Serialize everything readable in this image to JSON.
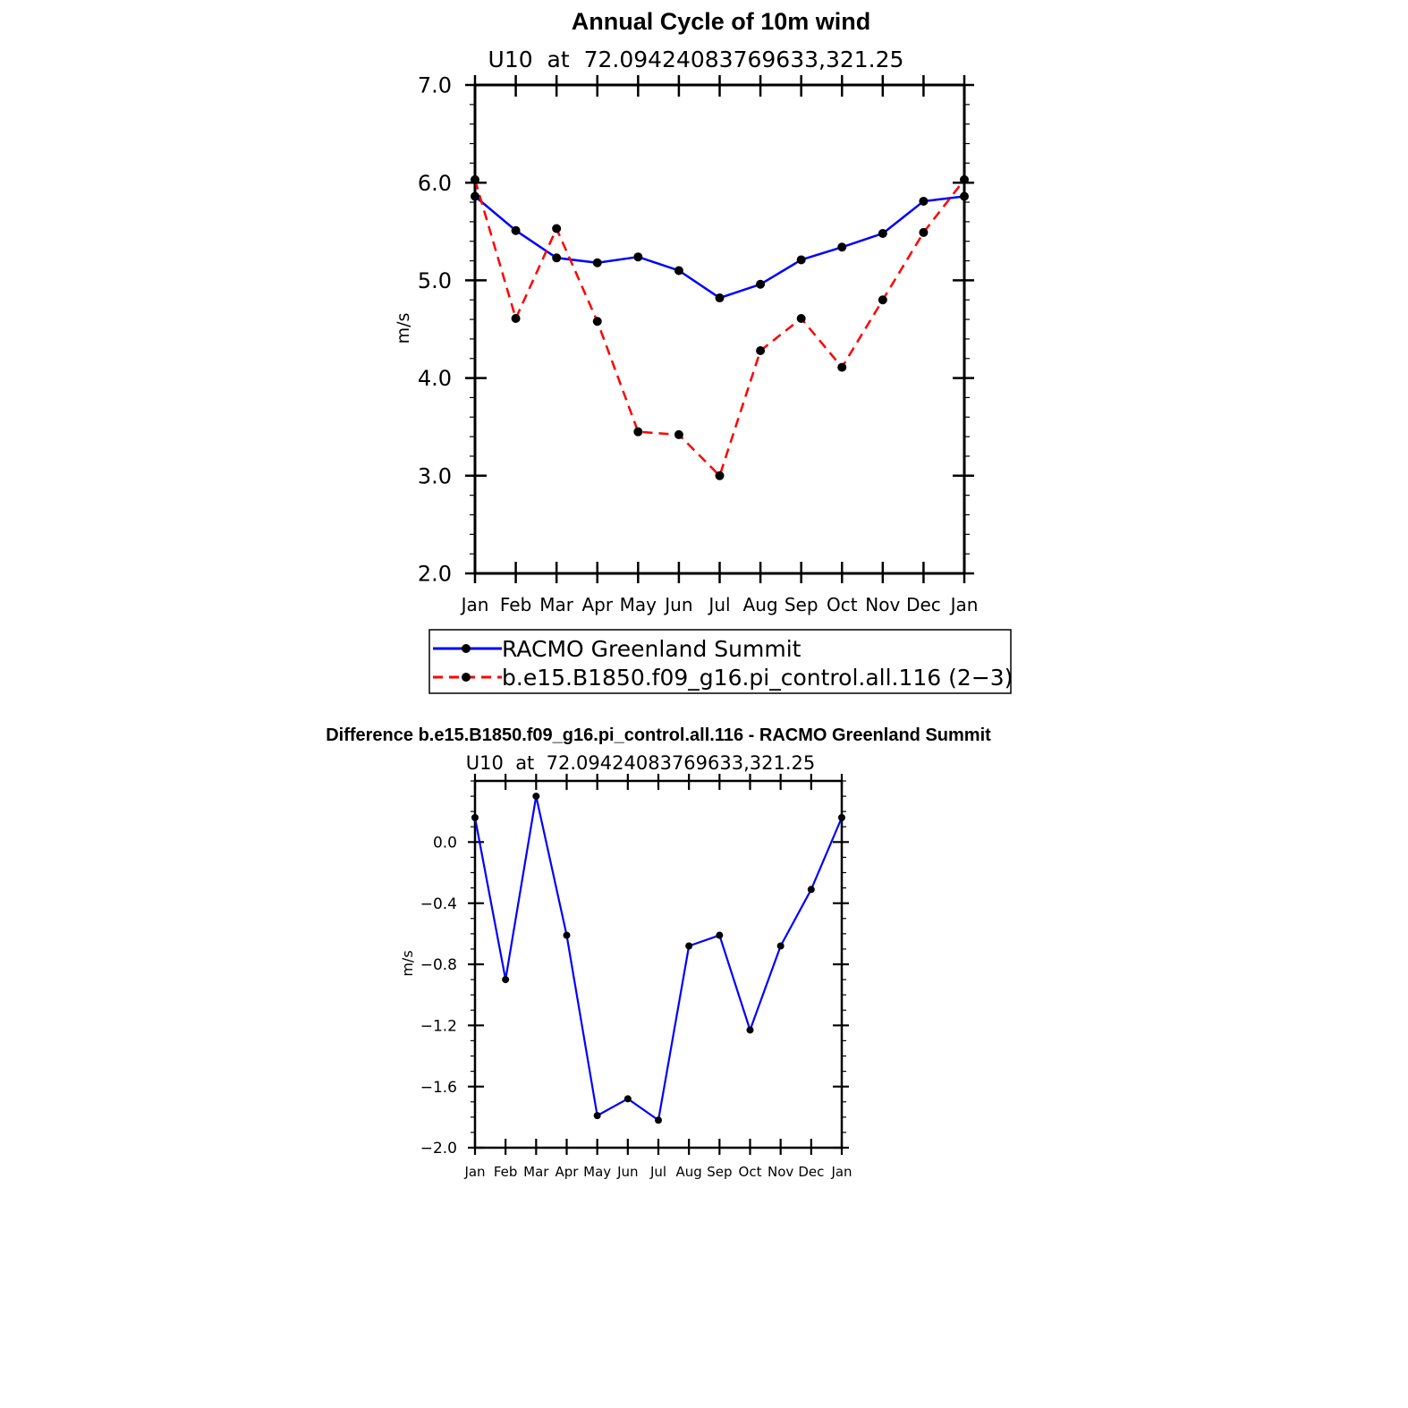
{
  "chart_data": [
    {
      "type": "line",
      "title": "Annual Cycle of 10m wind",
      "subtitle": "U10  at  72.09424083769633,321.25",
      "xlabel": "",
      "ylabel": "m/s",
      "categories": [
        "Jan",
        "Feb",
        "Mar",
        "Apr",
        "May",
        "Jun",
        "Jul",
        "Aug",
        "Sep",
        "Oct",
        "Nov",
        "Dec",
        "Jan"
      ],
      "ylim": [
        2.0,
        7.0
      ],
      "yticks": [
        2.0,
        3.0,
        4.0,
        5.0,
        6.0,
        7.0
      ],
      "ytick_labels": [
        "2.0",
        "3.0",
        "4.0",
        "5.0",
        "6.0",
        "7.0"
      ],
      "grid": false,
      "legend_position": "bottom",
      "series": [
        {
          "name": "RACMO Greenland Summit",
          "color": "#0000ff",
          "dash": "solid",
          "values": [
            5.86,
            5.51,
            5.23,
            5.18,
            5.24,
            5.1,
            4.82,
            4.96,
            5.21,
            5.34,
            5.48,
            5.81,
            5.86
          ]
        },
        {
          "name": "b.e15.B1850.f09_g16.pi_control.all.116 (2−3)",
          "color": "#ff0000",
          "dash": "dashed",
          "values": [
            6.03,
            4.61,
            5.53,
            4.58,
            3.45,
            3.42,
            3.0,
            4.28,
            4.61,
            4.11,
            4.8,
            5.49,
            6.03
          ]
        }
      ]
    },
    {
      "type": "line",
      "title": "Difference b.e15.B1850.f09_g16.pi_control.all.116 - RACMO Greenland Summit",
      "subtitle": "U10  at  72.09424083769633,321.25",
      "xlabel": "",
      "ylabel": "m/s",
      "categories": [
        "Jan",
        "Feb",
        "Mar",
        "Apr",
        "May",
        "Jun",
        "Jul",
        "Aug",
        "Sep",
        "Oct",
        "Nov",
        "Dec",
        "Jan"
      ],
      "ylim": [
        -2.0,
        0.4
      ],
      "yticks": [
        -2.0,
        -1.6,
        -1.2,
        -0.8,
        -0.4,
        0.0
      ],
      "ytick_labels": [
        "−2.0",
        "−1.6",
        "−1.2",
        "−0.8",
        "−0.4",
        "0.0"
      ],
      "grid": false,
      "series": [
        {
          "color": "#0000ff",
          "dash": "solid",
          "values": [
            0.16,
            -0.9,
            0.3,
            -0.61,
            -1.79,
            -1.68,
            -1.82,
            -0.68,
            -0.61,
            -1.23,
            -0.68,
            -0.31,
            0.16
          ]
        }
      ]
    }
  ]
}
